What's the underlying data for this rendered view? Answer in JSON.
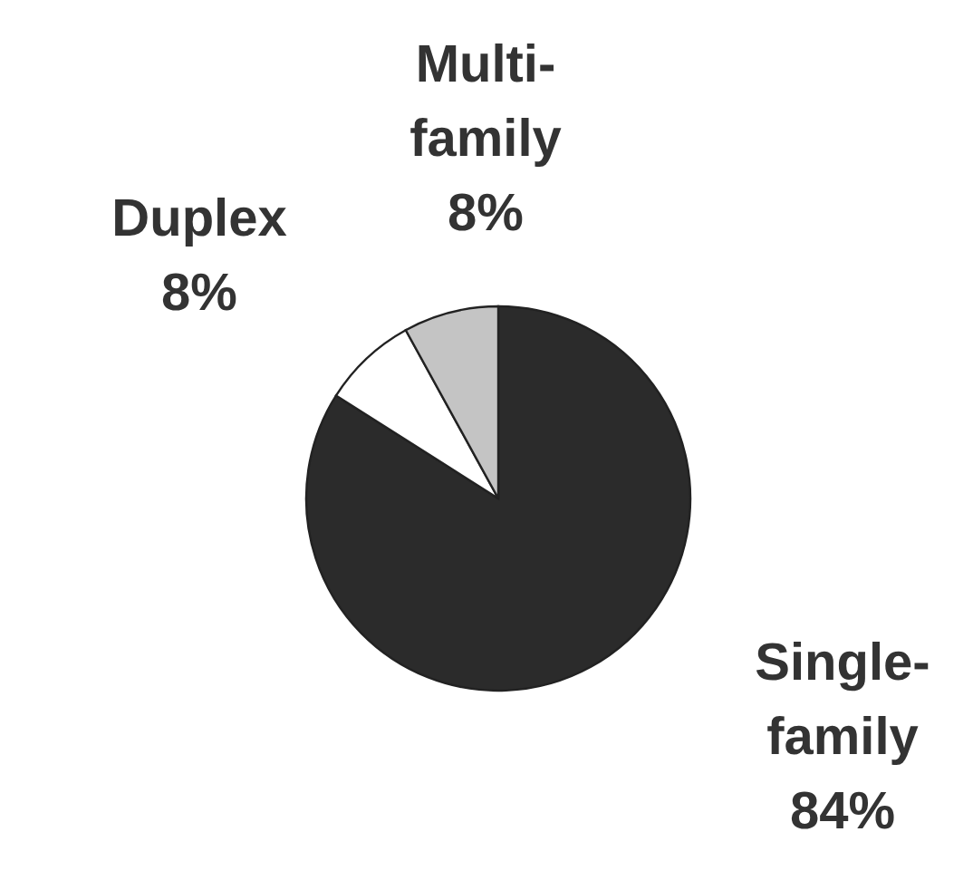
{
  "chart_data": {
    "type": "pie",
    "categories": [
      "Single-family",
      "Duplex",
      "Multi-family"
    ],
    "values": [
      84,
      8,
      8
    ],
    "value_labels": [
      "84%",
      "8%",
      "8%"
    ],
    "colors": [
      "#2b2b2b",
      "#ffffff",
      "#c4c4c4"
    ]
  }
}
